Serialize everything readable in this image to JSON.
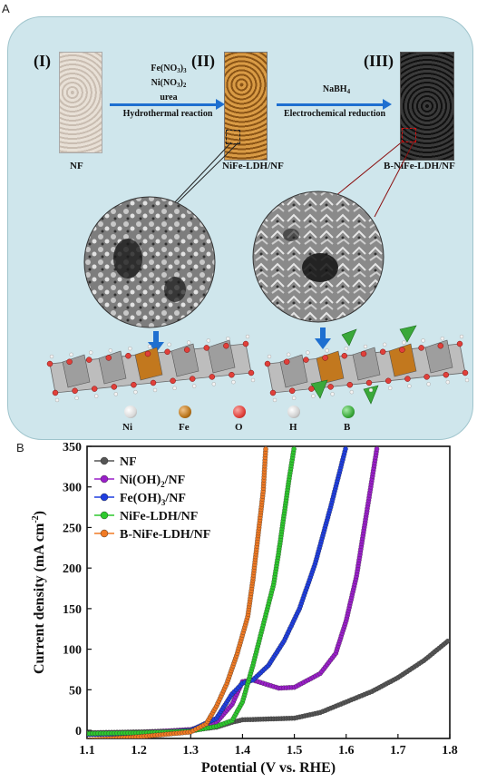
{
  "panel_a": {
    "letter": "A",
    "stages": [
      {
        "roman": "(I)",
        "label": "NF"
      },
      {
        "roman": "(II)",
        "label": "NiFe-LDH/NF"
      },
      {
        "roman": "(III)",
        "label": "B-NiFe-LDH/NF"
      }
    ],
    "step1": {
      "reagent1": "Fe(NO",
      "reagent1_sub": "3",
      "reagent1_end": ")",
      "reagent1_sub2": "3",
      "reagent2": "Ni(NO",
      "reagent2_sub": "3",
      "reagent2_end": ")",
      "reagent2_sub2": "2",
      "reagent3": "urea",
      "process": "Hydrothermal reaction"
    },
    "step2": {
      "reagent": "NaBH",
      "reagent_sub": "4",
      "process": "Electrochemical reduction"
    },
    "atom_legend": [
      {
        "symbol": "Ni",
        "color": "#d9d9d9"
      },
      {
        "symbol": "Fe",
        "color": "#b8741a"
      },
      {
        "symbol": "O",
        "color": "#e0403a"
      },
      {
        "symbol": "H",
        "color": "#cfcfcf"
      },
      {
        "symbol": "B",
        "color": "#3aa83a"
      }
    ]
  },
  "panel_b": {
    "letter": "B"
  },
  "chart_data": {
    "type": "line",
    "xlabel": "Potential (V vs. RHE)",
    "ylabel": "Current density (mA cm-2)",
    "xlim": [
      1.1,
      1.8
    ],
    "ylim": [
      -10,
      350
    ],
    "xticks": [
      1.1,
      1.2,
      1.3,
      1.4,
      1.5,
      1.6,
      1.7,
      1.8
    ],
    "yticks": [
      0,
      50,
      100,
      150,
      200,
      250,
      300,
      350
    ],
    "legend_position": "top-left",
    "series": [
      {
        "name": "NF",
        "color": "#555555",
        "points": [
          [
            1.1,
            -3
          ],
          [
            1.2,
            -2
          ],
          [
            1.3,
            0
          ],
          [
            1.35,
            4
          ],
          [
            1.38,
            10
          ],
          [
            1.4,
            13
          ],
          [
            1.45,
            14
          ],
          [
            1.5,
            15
          ],
          [
            1.55,
            22
          ],
          [
            1.6,
            35
          ],
          [
            1.65,
            48
          ],
          [
            1.7,
            65
          ],
          [
            1.75,
            86
          ],
          [
            1.8,
            112
          ]
        ]
      },
      {
        "name": "Ni(OH)2/NF",
        "color": "#9a1fc9",
        "points": [
          [
            1.1,
            -5
          ],
          [
            1.2,
            -3
          ],
          [
            1.3,
            1
          ],
          [
            1.35,
            10
          ],
          [
            1.38,
            32
          ],
          [
            1.4,
            60
          ],
          [
            1.42,
            62
          ],
          [
            1.44,
            58
          ],
          [
            1.47,
            52
          ],
          [
            1.5,
            53
          ],
          [
            1.55,
            70
          ],
          [
            1.58,
            95
          ],
          [
            1.6,
            135
          ],
          [
            1.62,
            190
          ],
          [
            1.64,
            270
          ],
          [
            1.66,
            350
          ]
        ]
      },
      {
        "name": "Fe(OH)3/NF",
        "color": "#1f3ee0",
        "points": [
          [
            1.1,
            -5
          ],
          [
            1.2,
            -4
          ],
          [
            1.3,
            0
          ],
          [
            1.35,
            15
          ],
          [
            1.38,
            45
          ],
          [
            1.4,
            58
          ],
          [
            1.42,
            62
          ],
          [
            1.45,
            80
          ],
          [
            1.48,
            110
          ],
          [
            1.51,
            150
          ],
          [
            1.54,
            205
          ],
          [
            1.57,
            275
          ],
          [
            1.6,
            350
          ]
        ]
      },
      {
        "name": "NiFe-LDH/NF",
        "color": "#2ec92e",
        "points": [
          [
            1.1,
            -4
          ],
          [
            1.2,
            -3
          ],
          [
            1.3,
            -1
          ],
          [
            1.35,
            5
          ],
          [
            1.38,
            12
          ],
          [
            1.4,
            35
          ],
          [
            1.42,
            80
          ],
          [
            1.44,
            130
          ],
          [
            1.46,
            180
          ],
          [
            1.47,
            220
          ],
          [
            1.48,
            265
          ],
          [
            1.49,
            310
          ],
          [
            1.5,
            350
          ]
        ]
      },
      {
        "name": "B-NiFe-LDH/NF",
        "color": "#f07a24",
        "points": [
          [
            1.1,
            -12
          ],
          [
            1.2,
            -8
          ],
          [
            1.3,
            -2
          ],
          [
            1.33,
            8
          ],
          [
            1.35,
            30
          ],
          [
            1.37,
            58
          ],
          [
            1.39,
            95
          ],
          [
            1.41,
            140
          ],
          [
            1.42,
            185
          ],
          [
            1.43,
            240
          ],
          [
            1.44,
            295
          ],
          [
            1.445,
            350
          ]
        ]
      }
    ]
  }
}
